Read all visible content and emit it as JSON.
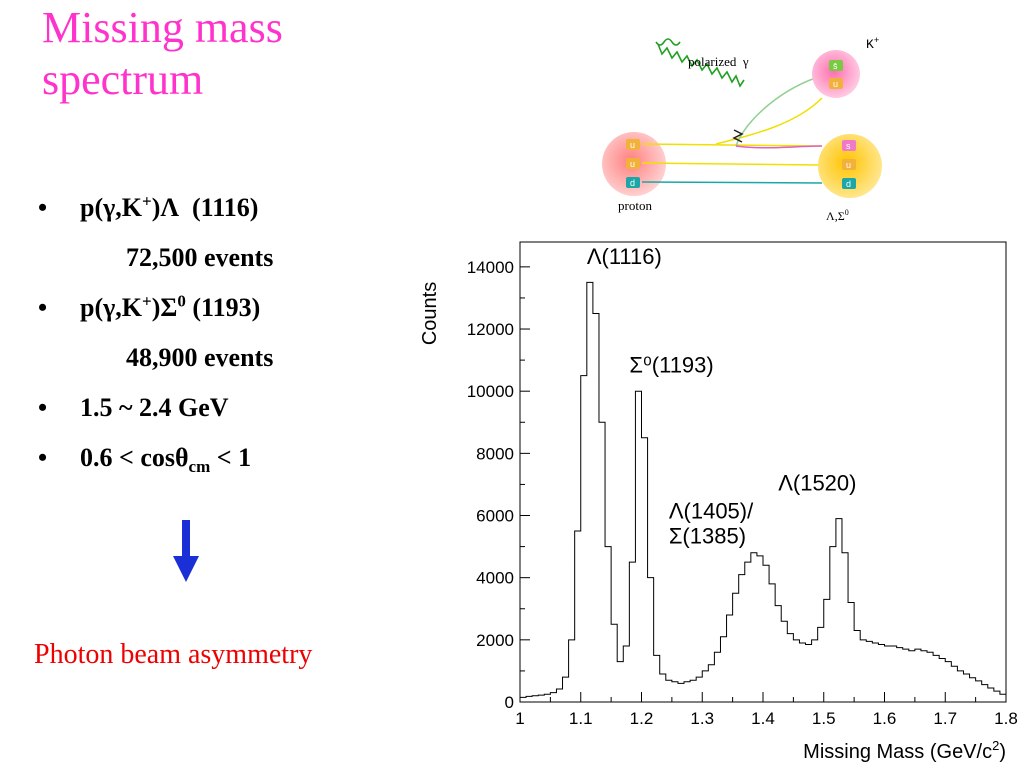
{
  "slide": {
    "title_line1": "Missing mass",
    "title_line2": "spectrum",
    "bullets": [
      {
        "text": "p(γ,K",
        "sup": "+",
        "rest": ")Λ  (1116)",
        "detail": "72,500 events"
      },
      {
        "text": "p(γ,K",
        "sup": "+",
        "rest": ")Σ",
        "sup2": "0",
        "rest2": " (1193)",
        "detail": "48,900 events"
      },
      {
        "text": "1.5 ~ 2.4 GeV"
      },
      {
        "text": "0.6 < cosθ",
        "sub": "cm",
        "rest": " < 1"
      }
    ],
    "bullet_symbol": "•",
    "arrow_icon": "down-arrow-icon",
    "beam_note": "Photon beam asymmetry",
    "colors": {
      "title": "#ff33cc",
      "note": "#ee0000",
      "arrow": "#1a2fd6"
    }
  },
  "diagram": {
    "photon_label": "polarized  γ",
    "kaon_label": "K",
    "kaon_label_sup": "+",
    "proton_label": "proton",
    "hyperon_label": "Λ,Σ",
    "hyperon_label_sup": "0",
    "proton_quarks": [
      "u",
      "u",
      "d"
    ],
    "kaon_quarks": [
      "s̄",
      "u"
    ],
    "hyperon_quarks": [
      "s",
      "u",
      "d"
    ]
  },
  "chart_data": {
    "type": "line",
    "style": "step-histogram",
    "xlabel": "Missing Mass (GeV/c",
    "xlabel_sup": "2",
    "xlabel_tail": ")",
    "ylabel": "Counts",
    "xlim": [
      1.0,
      1.8
    ],
    "ylim": [
      0,
      14800
    ],
    "x_ticks": [
      1,
      1.1,
      1.2,
      1.3,
      1.4,
      1.5,
      1.6,
      1.7,
      1.8
    ],
    "x_tick_labels": [
      "1",
      "1.1",
      "1.2",
      "1.3",
      "1.4",
      "1.5",
      "1.6",
      "1.7",
      "1.8"
    ],
    "y_ticks": [
      0,
      2000,
      4000,
      6000,
      8000,
      10000,
      12000,
      14000
    ],
    "y_tick_labels": [
      "0",
      "2000",
      "4000",
      "6000",
      "8000",
      "10000",
      "12000",
      "14000"
    ],
    "grid": false,
    "legend": "none",
    "annotations": [
      {
        "text": "Λ(1116)",
        "x": 1.11,
        "y": 14100
      },
      {
        "text": "Σ⁰(1193)",
        "x": 1.18,
        "y": 10600
      },
      {
        "text": "Λ(1405)/",
        "x": 1.245,
        "y": 5900
      },
      {
        "text": "Σ(1385)",
        "x": 1.245,
        "y": 5100
      },
      {
        "text": "Λ(1520)",
        "x": 1.425,
        "y": 6800
      }
    ],
    "series": [
      {
        "bins": [
          [
            1.0,
            150
          ],
          [
            1.01,
            180
          ],
          [
            1.02,
            200
          ],
          [
            1.03,
            220
          ],
          [
            1.04,
            250
          ],
          [
            1.05,
            300
          ],
          [
            1.06,
            420
          ],
          [
            1.07,
            800
          ],
          [
            1.08,
            2000
          ],
          [
            1.09,
            5500
          ],
          [
            1.1,
            10500
          ],
          [
            1.11,
            13500
          ],
          [
            1.12,
            12500
          ],
          [
            1.13,
            9000
          ],
          [
            1.14,
            5000
          ],
          [
            1.15,
            2500
          ],
          [
            1.16,
            1300
          ],
          [
            1.17,
            1800
          ],
          [
            1.18,
            4500
          ],
          [
            1.19,
            10000
          ],
          [
            1.2,
            8500
          ],
          [
            1.21,
            4000
          ],
          [
            1.22,
            1500
          ],
          [
            1.23,
            900
          ],
          [
            1.24,
            700
          ],
          [
            1.25,
            650
          ],
          [
            1.26,
            600
          ],
          [
            1.27,
            650
          ],
          [
            1.28,
            700
          ],
          [
            1.29,
            800
          ],
          [
            1.3,
            1000
          ],
          [
            1.31,
            1200
          ],
          [
            1.32,
            1600
          ],
          [
            1.33,
            2100
          ],
          [
            1.34,
            2800
          ],
          [
            1.35,
            3500
          ],
          [
            1.36,
            4100
          ],
          [
            1.37,
            4500
          ],
          [
            1.38,
            4800
          ],
          [
            1.39,
            4700
          ],
          [
            1.4,
            4400
          ],
          [
            1.41,
            3800
          ],
          [
            1.42,
            3100
          ],
          [
            1.43,
            2600
          ],
          [
            1.44,
            2200
          ],
          [
            1.45,
            2000
          ],
          [
            1.46,
            1900
          ],
          [
            1.47,
            1850
          ],
          [
            1.48,
            2000
          ],
          [
            1.49,
            2400
          ],
          [
            1.5,
            3300
          ],
          [
            1.51,
            5000
          ],
          [
            1.52,
            5900
          ],
          [
            1.53,
            4800
          ],
          [
            1.54,
            3200
          ],
          [
            1.55,
            2300
          ],
          [
            1.56,
            2000
          ],
          [
            1.57,
            1950
          ],
          [
            1.58,
            1900
          ],
          [
            1.59,
            1850
          ],
          [
            1.6,
            1800
          ],
          [
            1.61,
            1800
          ],
          [
            1.62,
            1750
          ],
          [
            1.63,
            1700
          ],
          [
            1.64,
            1650
          ],
          [
            1.65,
            1700
          ],
          [
            1.66,
            1650
          ],
          [
            1.67,
            1600
          ],
          [
            1.68,
            1500
          ],
          [
            1.69,
            1400
          ],
          [
            1.7,
            1300
          ],
          [
            1.71,
            1150
          ],
          [
            1.72,
            1000
          ],
          [
            1.73,
            900
          ],
          [
            1.74,
            780
          ],
          [
            1.75,
            680
          ],
          [
            1.76,
            560
          ],
          [
            1.77,
            450
          ],
          [
            1.78,
            350
          ],
          [
            1.79,
            250
          ]
        ],
        "bin_width": 0.01
      }
    ]
  }
}
